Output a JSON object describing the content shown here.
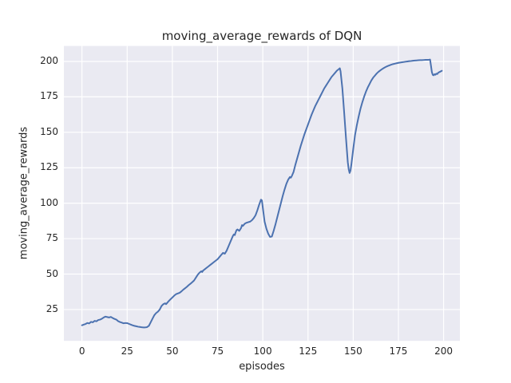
{
  "figure": {
    "background": "#ffffff",
    "axes_background": "#eaeaf2",
    "grid_color": "#ffffff",
    "text_color": "#262626"
  },
  "chart_data": {
    "type": "line",
    "title": "moving_average_rewards of DQN",
    "xlabel": "episodes",
    "ylabel": "moving_average_rewards",
    "xlim": [
      -10,
      209
    ],
    "ylim": [
      2.9,
      210.9
    ],
    "x_ticks": [
      0,
      25,
      50,
      75,
      100,
      125,
      150,
      175,
      200
    ],
    "y_ticks": [
      25,
      50,
      75,
      100,
      125,
      150,
      175,
      200
    ],
    "grid": true,
    "legend": false,
    "series": [
      {
        "name": "moving_average_rewards",
        "color": "#4c72b0",
        "points": [
          [
            0,
            13.9
          ],
          [
            1,
            14.4
          ],
          [
            2,
            14.8
          ],
          [
            3,
            15.5
          ],
          [
            4,
            15.2
          ],
          [
            5,
            16.3
          ],
          [
            6,
            16
          ],
          [
            7,
            17
          ],
          [
            8,
            16.7
          ],
          [
            9,
            17.6
          ],
          [
            10,
            17.9
          ],
          [
            11,
            18.5
          ],
          [
            12,
            19.4
          ],
          [
            13,
            20
          ],
          [
            14,
            19.7
          ],
          [
            15,
            19.4
          ],
          [
            16,
            19.8
          ],
          [
            17,
            19
          ],
          [
            18,
            18.4
          ],
          [
            19,
            17.9
          ],
          [
            20,
            16.8
          ],
          [
            21,
            16.2
          ],
          [
            22,
            15.8
          ],
          [
            23,
            15.3
          ],
          [
            24,
            15.5
          ],
          [
            25,
            15.4
          ],
          [
            26,
            14.9
          ],
          [
            27,
            14.4
          ],
          [
            28,
            13.9
          ],
          [
            29,
            13.5
          ],
          [
            30,
            13.2
          ],
          [
            31,
            12.9
          ],
          [
            32,
            12.7
          ],
          [
            33,
            12.5
          ],
          [
            34,
            12.4
          ],
          [
            35,
            12.4
          ],
          [
            36,
            12.6
          ],
          [
            37,
            13.5
          ],
          [
            38,
            16
          ],
          [
            39,
            18.5
          ],
          [
            40,
            21
          ],
          [
            41,
            22.5
          ],
          [
            42,
            23.5
          ],
          [
            43,
            25
          ],
          [
            44,
            27.5
          ],
          [
            45,
            28.8
          ],
          [
            46,
            29.4
          ],
          [
            46.5,
            28.8
          ],
          [
            47,
            29.5
          ],
          [
            48,
            31
          ],
          [
            49,
            32.3
          ],
          [
            50,
            33.5
          ],
          [
            51,
            34.8
          ],
          [
            52,
            35.8
          ],
          [
            53,
            36.3
          ],
          [
            54,
            36.8
          ],
          [
            55,
            37.8
          ],
          [
            56,
            39
          ],
          [
            57,
            40
          ],
          [
            58,
            41
          ],
          [
            59,
            42.2
          ],
          [
            60,
            43.2
          ],
          [
            61,
            44.3
          ],
          [
            62,
            45.5
          ],
          [
            63,
            47.5
          ],
          [
            64,
            49.5
          ],
          [
            65,
            51
          ],
          [
            66,
            52
          ],
          [
            66.5,
            51.5
          ],
          [
            67,
            52.5
          ],
          [
            68,
            53.5
          ],
          [
            69,
            54.5
          ],
          [
            70,
            55.5
          ],
          [
            71,
            56.5
          ],
          [
            72,
            57.5
          ],
          [
            73,
            58.5
          ],
          [
            74,
            59.5
          ],
          [
            75,
            60.5
          ],
          [
            76,
            62
          ],
          [
            77,
            63.5
          ],
          [
            78,
            65
          ],
          [
            79,
            64.4
          ],
          [
            80,
            66.5
          ],
          [
            81,
            69.5
          ],
          [
            82,
            72.5
          ],
          [
            83,
            75.5
          ],
          [
            83.5,
            77
          ],
          [
            84,
            78
          ],
          [
            84.5,
            77.5
          ],
          [
            85,
            79.5
          ],
          [
            85.5,
            81
          ],
          [
            86,
            81.5
          ],
          [
            87,
            80.5
          ],
          [
            88,
            82.5
          ],
          [
            88.5,
            84.5
          ],
          [
            89,
            84
          ],
          [
            90,
            85.5
          ],
          [
            91,
            86.2
          ],
          [
            92,
            86.6
          ],
          [
            93,
            87
          ],
          [
            94,
            88
          ],
          [
            95,
            89.5
          ],
          [
            96,
            91.5
          ],
          [
            97,
            95
          ],
          [
            98,
            99
          ],
          [
            99,
            102.5
          ],
          [
            99.5,
            102
          ],
          [
            100,
            97
          ],
          [
            101,
            87
          ],
          [
            102,
            82
          ],
          [
            103,
            78.5
          ],
          [
            104,
            76.2
          ],
          [
            105,
            76.5
          ],
          [
            106,
            80.5
          ],
          [
            107,
            85
          ],
          [
            108,
            90
          ],
          [
            109,
            95
          ],
          [
            110,
            100
          ],
          [
            111,
            105
          ],
          [
            112,
            109.5
          ],
          [
            113,
            113.5
          ],
          [
            114,
            116.5
          ],
          [
            115,
            118.5
          ],
          [
            115.5,
            118
          ],
          [
            116,
            119
          ],
          [
            117,
            122
          ],
          [
            118,
            127
          ],
          [
            119,
            131.5
          ],
          [
            120,
            136
          ],
          [
            121,
            140.5
          ],
          [
            122,
            144.5
          ],
          [
            123,
            148.5
          ],
          [
            124,
            152
          ],
          [
            125,
            155.5
          ],
          [
            126,
            159
          ],
          [
            127,
            162.5
          ],
          [
            128,
            165.5
          ],
          [
            129,
            168.5
          ],
          [
            130,
            171
          ],
          [
            131,
            173.5
          ],
          [
            132,
            176
          ],
          [
            133,
            178.5
          ],
          [
            134,
            181
          ],
          [
            135,
            183
          ],
          [
            136,
            185
          ],
          [
            137,
            187
          ],
          [
            138,
            189
          ],
          [
            139,
            190.5
          ],
          [
            140,
            192
          ],
          [
            141,
            193.5
          ],
          [
            142,
            194.5
          ],
          [
            142.6,
            195.2
          ],
          [
            143,
            193
          ],
          [
            144,
            181
          ],
          [
            145,
            164
          ],
          [
            146,
            146
          ],
          [
            147,
            129
          ],
          [
            147.5,
            124
          ],
          [
            148,
            121.3
          ],
          [
            148.5,
            123
          ],
          [
            149,
            127.5
          ],
          [
            150,
            138
          ],
          [
            151,
            148
          ],
          [
            152,
            155
          ],
          [
            153,
            161
          ],
          [
            154,
            166.5
          ],
          [
            155,
            171
          ],
          [
            156,
            175
          ],
          [
            157,
            178.5
          ],
          [
            158,
            181.5
          ],
          [
            159,
            184
          ],
          [
            160,
            186.5
          ],
          [
            161,
            188.5
          ],
          [
            162,
            190
          ],
          [
            163,
            191.5
          ],
          [
            164,
            192.7
          ],
          [
            165,
            193.7
          ],
          [
            166,
            194.6
          ],
          [
            167,
            195.4
          ],
          [
            168,
            196.1
          ],
          [
            169,
            196.7
          ],
          [
            170,
            197.2
          ],
          [
            171,
            197.7
          ],
          [
            172,
            198.1
          ],
          [
            173,
            198.4
          ],
          [
            174,
            198.7
          ],
          [
            175,
            199
          ],
          [
            176,
            199.2
          ],
          [
            177,
            199.4
          ],
          [
            178,
            199.6
          ],
          [
            179,
            199.8
          ],
          [
            180,
            200
          ],
          [
            181,
            200.2
          ],
          [
            182,
            200.3
          ],
          [
            183,
            200.5
          ],
          [
            184,
            200.6
          ],
          [
            185,
            200.7
          ],
          [
            186,
            200.8
          ],
          [
            187,
            200.9
          ],
          [
            188,
            200.9
          ],
          [
            189,
            201
          ],
          [
            190,
            201.1
          ],
          [
            191,
            201.1
          ],
          [
            192,
            201.2
          ],
          [
            192.5,
            201.3
          ],
          [
            193,
            197
          ],
          [
            193.5,
            192.5
          ],
          [
            194,
            190.5
          ],
          [
            194.5,
            190.2
          ],
          [
            195,
            191
          ],
          [
            195.5,
            190.6
          ],
          [
            196,
            191.4
          ],
          [
            196.5,
            191.1
          ],
          [
            197,
            192
          ],
          [
            198,
            192.7
          ],
          [
            199,
            193.4
          ]
        ]
      }
    ]
  }
}
